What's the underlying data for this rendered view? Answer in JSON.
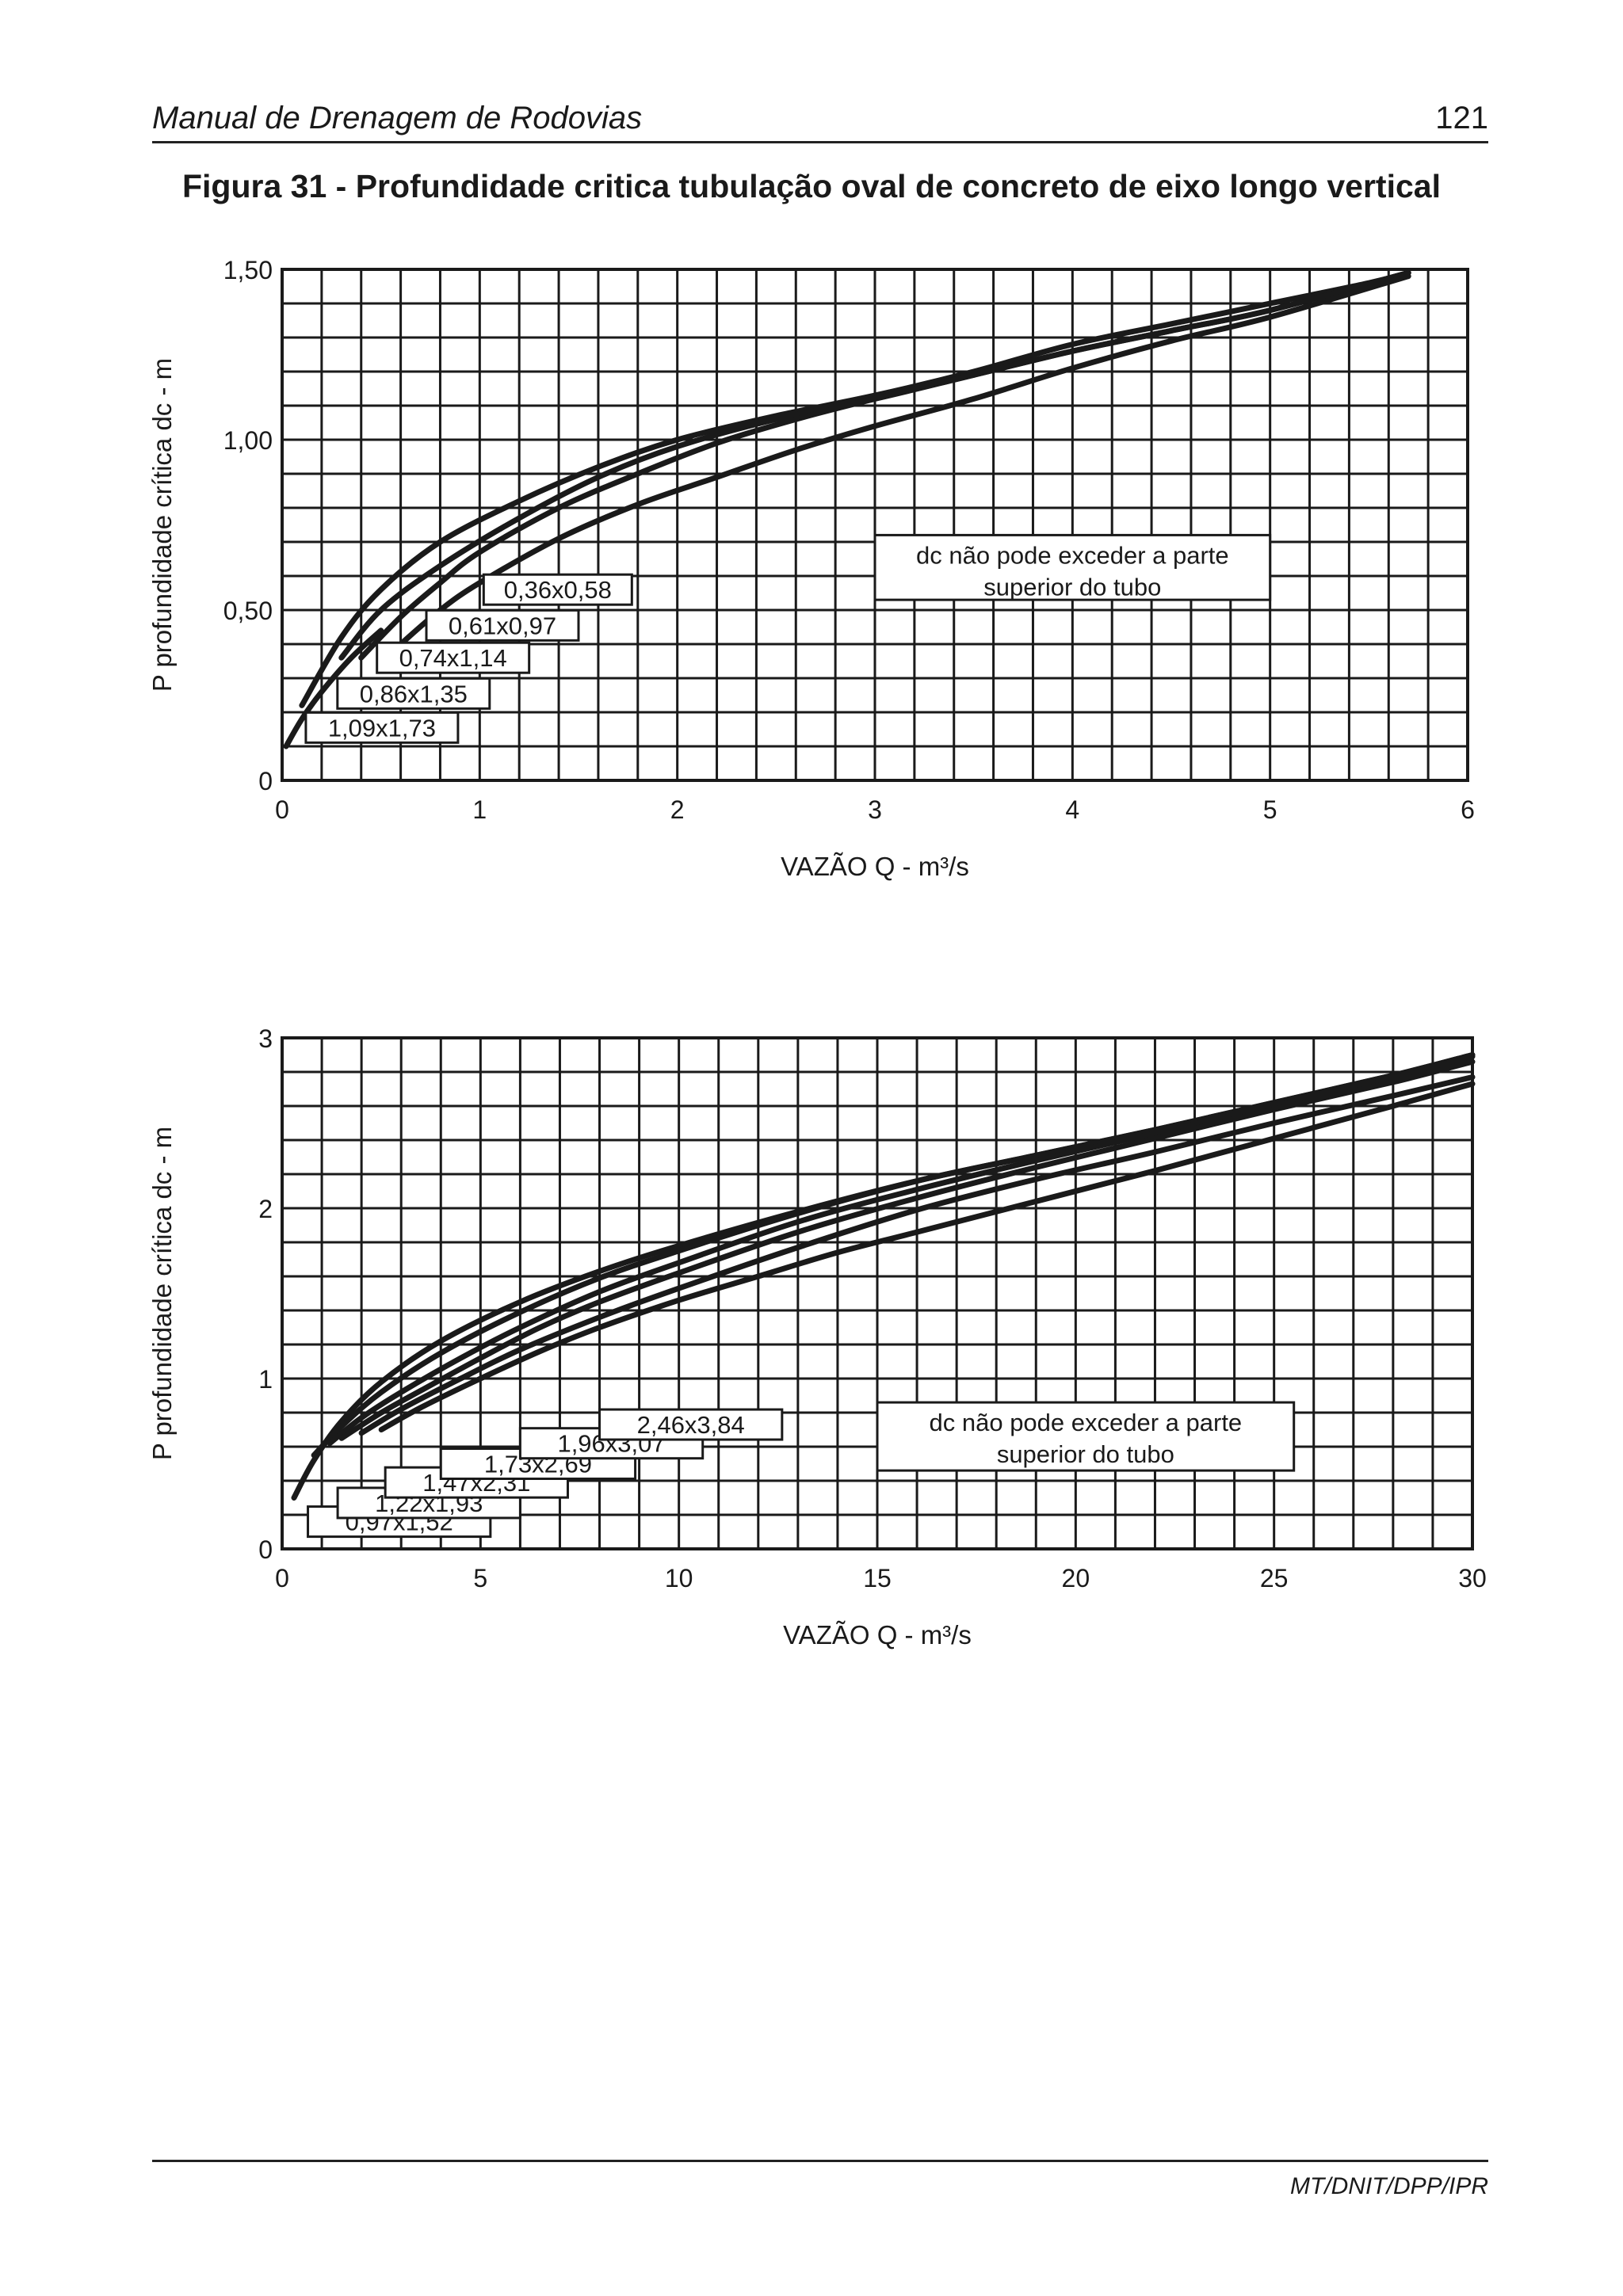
{
  "header": {
    "title": "Manual de Drenagem de Rodovias",
    "page": "121"
  },
  "figure_title": "Figura 31 - Profundidade critica tubulação oval de concreto de eixo longo vertical",
  "footer": {
    "code": "MT/DNIT/DPP/IPR"
  },
  "chart_data": [
    {
      "type": "line",
      "xlabel": "VAZÃO Q - m³/s",
      "ylabel": "P profundidade crítica dc - m",
      "xlim": [
        0,
        6
      ],
      "ylim": [
        0,
        1.5
      ],
      "x_ticks": [
        "0",
        "1",
        "2",
        "3",
        "4",
        "5",
        "6"
      ],
      "y_ticks": [
        "0",
        "0,50",
        "1,00",
        "1,50"
      ],
      "grid": true,
      "note_lines": [
        "dc não pode exceder a parte",
        "superior do tubo"
      ],
      "series": [
        {
          "name": "0,36x0,58",
          "x": [
            0.02,
            0.1,
            0.2,
            0.35,
            0.5
          ],
          "y": [
            0.1,
            0.18,
            0.26,
            0.36,
            0.44
          ]
        },
        {
          "name": "0,61x0,97",
          "x": [
            0.1,
            0.3,
            0.5,
            0.8,
            1.2,
            1.6,
            2.0,
            2.5,
            3.0,
            3.5,
            4.0,
            4.5,
            5.0,
            5.5,
            5.7
          ],
          "y": [
            0.22,
            0.42,
            0.56,
            0.7,
            0.82,
            0.92,
            1.0,
            1.07,
            1.13,
            1.2,
            1.28,
            1.34,
            1.4,
            1.46,
            1.49
          ]
        },
        {
          "name": "0,74x1,14",
          "x": [
            0.3,
            0.5,
            0.8,
            1.2,
            1.6,
            2.0,
            2.5,
            3.0,
            3.5,
            4.0,
            4.5,
            5.0,
            5.7
          ],
          "y": [
            0.36,
            0.5,
            0.63,
            0.77,
            0.89,
            0.98,
            1.06,
            1.12,
            1.19,
            1.26,
            1.32,
            1.38,
            1.49
          ]
        },
        {
          "name": "0,86x1,35",
          "x": [
            0.4,
            0.6,
            0.8,
            1.0,
            1.4,
            1.8,
            2.2,
            2.6,
            3.0,
            3.5,
            4.0,
            4.5,
            5.0,
            5.7
          ],
          "y": [
            0.36,
            0.48,
            0.58,
            0.67,
            0.8,
            0.9,
            0.99,
            1.06,
            1.12,
            1.19,
            1.26,
            1.32,
            1.38,
            1.49
          ]
        },
        {
          "name": "1,09x1,73",
          "x": [
            0.6,
            0.8,
            1.0,
            1.4,
            1.8,
            2.2,
            2.6,
            3.0,
            3.5,
            4.0,
            4.5,
            5.0,
            5.7
          ],
          "y": [
            0.4,
            0.5,
            0.58,
            0.71,
            0.81,
            0.89,
            0.97,
            1.04,
            1.12,
            1.21,
            1.29,
            1.36,
            1.48
          ]
        }
      ]
    },
    {
      "type": "line",
      "xlabel": "VAZÃO Q - m³/s",
      "ylabel": "P profundidade crítica dc - m",
      "xlim": [
        0,
        30
      ],
      "ylim": [
        0,
        3
      ],
      "x_ticks": [
        "0",
        "5",
        "10",
        "15",
        "20",
        "25",
        "30"
      ],
      "y_ticks": [
        "0",
        "1",
        "2",
        "3"
      ],
      "grid": true,
      "note_lines": [
        "dc não pode exceder a parte",
        "superior do tubo"
      ],
      "series": [
        {
          "name": "0,97x1,52",
          "x": [
            0.3,
            0.8,
            1.5,
            2.5,
            4.0,
            6.0,
            8.0,
            10.0,
            13.0,
            16.0,
            19.0,
            22.0,
            25.0,
            28.0,
            30.0
          ],
          "y": [
            0.3,
            0.52,
            0.75,
            0.98,
            1.22,
            1.45,
            1.63,
            1.78,
            1.98,
            2.16,
            2.31,
            2.46,
            2.62,
            2.78,
            2.9
          ]
        },
        {
          "name": "1,22x1,93",
          "x": [
            0.8,
            1.5,
            2.5,
            4.0,
            6.0,
            8.0,
            10.0,
            13.0,
            16.0,
            19.0,
            22.0,
            25.0,
            28.0,
            30.0
          ],
          "y": [
            0.55,
            0.72,
            0.92,
            1.15,
            1.39,
            1.59,
            1.75,
            1.97,
            2.16,
            2.31,
            2.46,
            2.62,
            2.78,
            2.9
          ]
        },
        {
          "name": "1,47x2,31",
          "x": [
            1.2,
            2.0,
            3.0,
            4.5,
            6.0,
            8.0,
            10.0,
            13.0,
            16.0,
            19.0,
            22.0,
            25.0,
            28.0,
            30.0
          ],
          "y": [
            0.62,
            0.77,
            0.92,
            1.12,
            1.3,
            1.51,
            1.68,
            1.92,
            2.11,
            2.28,
            2.44,
            2.6,
            2.76,
            2.89
          ]
        },
        {
          "name": "1,73x2,69",
          "x": [
            1.5,
            2.5,
            3.5,
            5.0,
            6.5,
            8.0,
            10.0,
            13.0,
            16.0,
            19.0,
            22.0,
            25.0,
            28.0,
            30.0
          ],
          "y": [
            0.65,
            0.8,
            0.93,
            1.12,
            1.3,
            1.45,
            1.62,
            1.86,
            2.06,
            2.24,
            2.41,
            2.58,
            2.74,
            2.86
          ]
        },
        {
          "name": "1,96x3,07",
          "x": [
            2.0,
            3.0,
            4.5,
            6.0,
            8.0,
            10.0,
            13.0,
            16.0,
            19.0,
            22.0,
            25.0,
            28.0,
            30.0
          ],
          "y": [
            0.68,
            0.82,
            1.0,
            1.17,
            1.36,
            1.53,
            1.77,
            1.99,
            2.17,
            2.33,
            2.5,
            2.66,
            2.77
          ]
        },
        {
          "name": "2,46x3,84",
          "x": [
            2.5,
            3.5,
            5.0,
            6.5,
            8.0,
            10.0,
            12.0,
            14.0,
            16.0,
            19.0,
            22.0,
            25.0,
            28.0,
            30.0
          ],
          "y": [
            0.7,
            0.83,
            1.0,
            1.16,
            1.3,
            1.46,
            1.6,
            1.74,
            1.86,
            2.04,
            2.22,
            2.41,
            2.6,
            2.73
          ]
        }
      ]
    }
  ]
}
